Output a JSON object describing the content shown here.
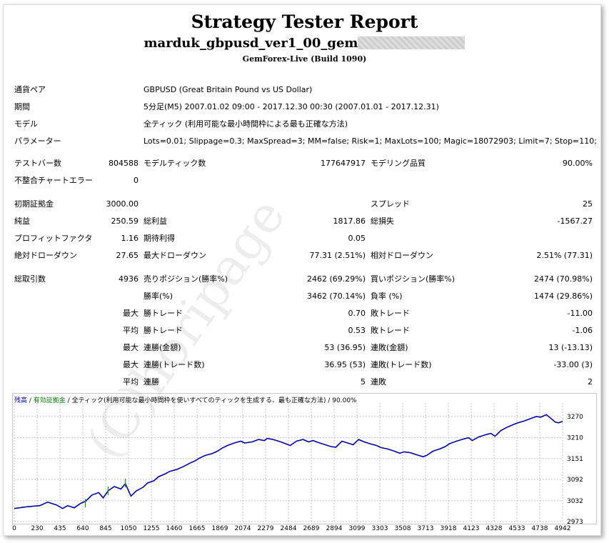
{
  "report": {
    "title": "Strategy Tester Report",
    "ea_name": "marduk_gbpusd_ver1_00_gem",
    "server": "GemForex-Live (Build 1090)"
  },
  "info": [
    {
      "label": "通貨ペア",
      "value": "GBPUSD (Great Britain Pound vs US Dollar)"
    },
    {
      "label": "期間",
      "value": "5分足(M5) 2007.01.02 09:00 - 2017.12.30 00:30 (2007.01.01 - 2017.12.31)"
    },
    {
      "label": "モデル",
      "value": "全ティック (利用可能な最小時間枠による最も正確な方法)"
    },
    {
      "label": "パラメーター",
      "value": "Lots=0.01; Slippage=0.3; MaxSpread=3; MM=false; Risk=1; MaxLots=100; Magic=18072903; Limit=7; Stop=110;"
    }
  ],
  "stats": {
    "bars_label": "テストバー数",
    "bars": "804588",
    "ticks_label": "モデルティック数",
    "ticks": "177647917",
    "quality_label": "モデリング品質",
    "quality": "90.00%",
    "mismatch_label": "不整合チャートエラー",
    "mismatch": "0",
    "deposit_label": "初期証拠金",
    "deposit": "3000.00",
    "spread_label": "スプレッド",
    "spread": "25",
    "net_label": "純益",
    "net": "250.59",
    "gross_profit_label": "総利益",
    "gross_profit": "1817.86",
    "gross_loss_label": "総損失",
    "gross_loss": "-1567.27",
    "pf_label": "プロフィットファクタ",
    "pf": "1.16",
    "expected_label": "期待利得",
    "expected": "0.05",
    "abs_dd_label": "絶対ドローダウン",
    "abs_dd": "27.65",
    "max_dd_label": "最大ドローダウン",
    "max_dd": "77.31 (2.51%)",
    "rel_dd_label": "相対ドローダウン",
    "rel_dd": "2.51% (77.31)",
    "trades_label": "総取引数",
    "trades": "4936",
    "short_label": "売りポジション(勝率%)",
    "short": "2462 (69.29%)",
    "long_label": "買いポジション(勝率%)",
    "long": "2474 (70.98%)",
    "winrate_label": "勝率(%)",
    "winrate": "3462 (70.14%)",
    "lossrate_label": "負率 (%)",
    "lossrate": "1474 (29.86%)",
    "max_label": "最大",
    "avg_label": "平均",
    "win_trade_label": "勝トレード",
    "lose_trade_label": "敗トレード",
    "max_win": "0.70",
    "max_loss": "-11.00",
    "avg_win": "0.53",
    "avg_loss": "-1.06",
    "consec_win_amt_label": "連勝(金額)",
    "consec_win_amt": "53 (36.95)",
    "consec_loss_amt_label": "連敗(金額)",
    "consec_loss_amt": "13 (-13.13)",
    "consec_win_cnt_label": "連勝(トレード数)",
    "consec_win_cnt": "36.95 (53)",
    "consec_loss_cnt_label": "連敗(トレード数)",
    "consec_loss_cnt": "-33.00 (3)",
    "avg_consec_win_label": "連勝",
    "avg_consec_win": "5",
    "avg_consec_loss_label": "連敗",
    "avg_consec_loss": "2"
  },
  "watermark": "(C)horipage",
  "chart_legend": {
    "balance": "残高",
    "sep1": " / ",
    "equity": "有効証拠金",
    "sep2": " / ",
    "desc": "全ティック(利用可能な最小時間枠を使いすべてのティックを生成する、最も正確な方法)",
    "sep3": " / ",
    "quality": "90.00%"
  },
  "colors": {
    "balance": "#0000aa",
    "equity": "#00aa00",
    "grid": "#c0c0c0"
  },
  "chart_data": {
    "type": "line",
    "x_ticks": [
      "0",
      "230",
      "435",
      "640",
      "845",
      "1050",
      "1255",
      "1460",
      "1665",
      "1869",
      "2074",
      "2279",
      "2484",
      "2689",
      "2894",
      "3099",
      "3303",
      "3508",
      "3713",
      "3918",
      "4123",
      "4328",
      "4533",
      "4738",
      "4942"
    ],
    "y_ticks": [
      "3270",
      "3210",
      "3151",
      "3092",
      "3032",
      "2973"
    ],
    "xlim": [
      0,
      4936
    ],
    "ylim": [
      2973,
      3300
    ],
    "series": [
      {
        "name": "残高",
        "x": [
          0,
          120,
          230,
          300,
          380,
          435,
          480,
          540,
          600,
          640,
          700,
          760,
          800,
          845,
          900,
          960,
          1000,
          1050,
          1100,
          1160,
          1200,
          1255,
          1300,
          1360,
          1400,
          1460,
          1520,
          1580,
          1630,
          1665,
          1720,
          1780,
          1830,
          1869,
          1920,
          1980,
          2040,
          2074,
          2140,
          2200,
          2250,
          2279,
          2330,
          2400,
          2450,
          2484,
          2540,
          2600,
          2650,
          2689,
          2740,
          2800,
          2850,
          2894,
          2950,
          3000,
          3050,
          3099,
          3150,
          3200,
          3260,
          3303,
          3360,
          3420,
          3470,
          3508,
          3560,
          3620,
          3680,
          3713,
          3770,
          3830,
          3880,
          3918,
          3980,
          4040,
          4090,
          4123,
          4180,
          4240,
          4290,
          4328,
          4380,
          4440,
          4500,
          4533,
          4590,
          4650,
          4700,
          4738,
          4790,
          4840,
          4870,
          4900,
          4936
        ],
        "y": [
          3010,
          3015,
          3018,
          3028,
          3020,
          3010,
          3018,
          3012,
          3025,
          3030,
          3048,
          3055,
          3040,
          3060,
          3072,
          3065,
          3080,
          3045,
          3060,
          3070,
          3082,
          3088,
          3100,
          3108,
          3115,
          3120,
          3128,
          3138,
          3145,
          3152,
          3160,
          3165,
          3172,
          3180,
          3188,
          3195,
          3200,
          3195,
          3198,
          3205,
          3202,
          3208,
          3205,
          3198,
          3192,
          3188,
          3200,
          3205,
          3198,
          3202,
          3196,
          3190,
          3185,
          3183,
          3200,
          3195,
          3190,
          3205,
          3198,
          3193,
          3188,
          3182,
          3178,
          3172,
          3166,
          3170,
          3168,
          3162,
          3156,
          3160,
          3172,
          3178,
          3185,
          3193,
          3200,
          3206,
          3210,
          3202,
          3212,
          3218,
          3222,
          3214,
          3230,
          3240,
          3248,
          3252,
          3257,
          3264,
          3270,
          3268,
          3275,
          3262,
          3254,
          3252,
          3256
        ]
      }
    ]
  }
}
